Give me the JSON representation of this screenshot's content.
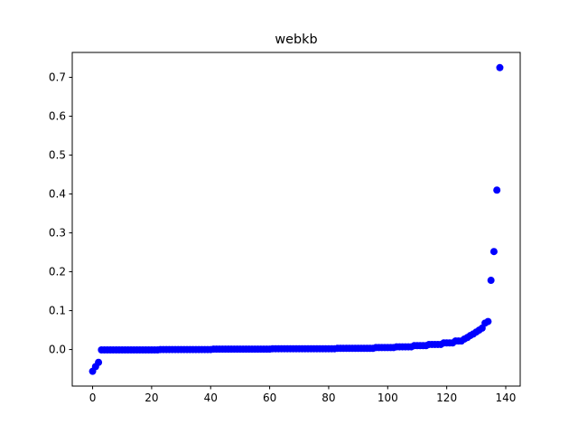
{
  "chart_data": {
    "type": "scatter",
    "title": "webkb",
    "x": [
      0,
      1,
      2,
      3,
      4,
      5,
      6,
      7,
      8,
      9,
      10,
      11,
      12,
      13,
      14,
      15,
      16,
      17,
      18,
      19,
      20,
      21,
      22,
      23,
      24,
      25,
      26,
      27,
      28,
      29,
      30,
      31,
      32,
      33,
      34,
      35,
      36,
      37,
      38,
      39,
      40,
      41,
      42,
      43,
      44,
      45,
      46,
      47,
      48,
      49,
      50,
      51,
      52,
      53,
      54,
      55,
      56,
      57,
      58,
      59,
      60,
      61,
      62,
      63,
      64,
      65,
      66,
      67,
      68,
      69,
      70,
      71,
      72,
      73,
      74,
      75,
      76,
      77,
      78,
      79,
      80,
      81,
      82,
      83,
      84,
      85,
      86,
      87,
      88,
      89,
      90,
      91,
      92,
      93,
      94,
      95,
      96,
      97,
      98,
      99,
      100,
      101,
      102,
      103,
      104,
      105,
      106,
      107,
      108,
      109,
      110,
      111,
      112,
      113,
      114,
      115,
      116,
      117,
      118,
      119,
      120,
      121,
      122,
      123,
      124,
      125,
      126,
      127,
      128,
      129,
      130,
      131,
      132,
      133,
      134,
      135,
      136,
      137,
      138
    ],
    "values": [
      -0.056,
      -0.044,
      -0.033,
      -0.001,
      -0.001,
      -0.001,
      -0.001,
      -0.001,
      -0.001,
      -0.001,
      -0.001,
      -0.001,
      -0.001,
      -0.001,
      -0.001,
      -0.001,
      -0.001,
      -0.001,
      -0.001,
      -0.001,
      -0.001,
      -0.001,
      -0.001,
      0,
      0,
      0,
      0,
      0,
      0,
      0,
      0,
      0,
      0,
      0,
      0,
      0,
      0,
      0,
      0,
      0,
      0,
      0.001,
      0.001,
      0.001,
      0.001,
      0.001,
      0.001,
      0.001,
      0.001,
      0.001,
      0.001,
      0.001,
      0.001,
      0.001,
      0.001,
      0.001,
      0.001,
      0.001,
      0.001,
      0.001,
      0.001,
      0.002,
      0.002,
      0.002,
      0.002,
      0.002,
      0.002,
      0.002,
      0.002,
      0.002,
      0.002,
      0.002,
      0.002,
      0.002,
      0.002,
      0.002,
      0.002,
      0.002,
      0.002,
      0.002,
      0.002,
      0.002,
      0.002,
      0.003,
      0.003,
      0.003,
      0.003,
      0.003,
      0.003,
      0.003,
      0.003,
      0.003,
      0.003,
      0.003,
      0.003,
      0.003,
      0.005,
      0.005,
      0.005,
      0.005,
      0.005,
      0.005,
      0.005,
      0.007,
      0.007,
      0.007,
      0.007,
      0.007,
      0.007,
      0.01,
      0.01,
      0.01,
      0.01,
      0.01,
      0.013,
      0.013,
      0.013,
      0.013,
      0.013,
      0.017,
      0.017,
      0.017,
      0.017,
      0.022,
      0.022,
      0.022,
      0.027,
      0.031,
      0.036,
      0.04,
      0.045,
      0.05,
      0.055,
      0.068,
      0.072,
      0.178,
      0.252,
      0.41,
      0.725
    ],
    "color": "#0000ff",
    "xlim": [
      -6.9,
      144.9
    ],
    "xticks": [
      0,
      20,
      40,
      60,
      80,
      100,
      120,
      140
    ],
    "ylim": [
      -0.094,
      0.764
    ],
    "yticks": [
      {
        "value": 0,
        "label": "0.0"
      },
      0.1,
      0.2,
      0.3,
      0.4,
      0.5,
      0.6,
      0.7
    ]
  }
}
